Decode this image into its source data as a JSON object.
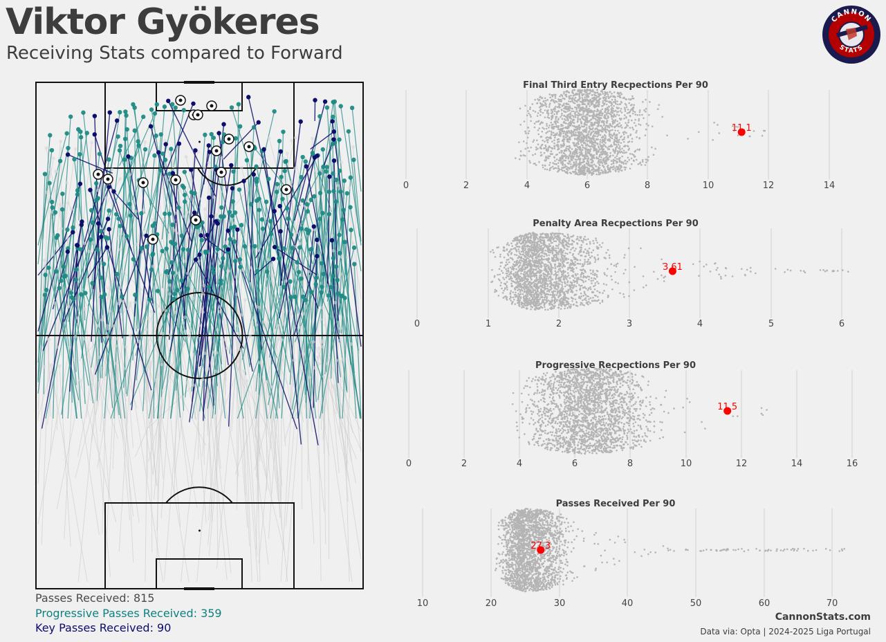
{
  "header": {
    "title": "Viktor Gyökeres",
    "subtitle": "Receiving Stats compared to Forward"
  },
  "logo": {
    "text_top": "CANNON",
    "text_bottom": "STATS",
    "colors": {
      "ring": "#1a1a4e",
      "fill": "#b30000"
    }
  },
  "pitch_legend": {
    "total": "Passes Received: 815",
    "progressive": "Progressive Passes Received: 359",
    "key": "Key Passes Received: 90"
  },
  "colors": {
    "background": "#f0f0f0",
    "all_passes": "#c8c8c8",
    "progressive": "#1f8a84",
    "key": "#0d0d6b",
    "highlight": "#ff0000",
    "swarm": "#b4b4b4"
  },
  "footer": {
    "site": "CannonStats.com",
    "source": "Data via: Opta | 2024-2025 Liga Portugal"
  },
  "chart_data": [
    {
      "type": "scatter",
      "title": "Final Third Entry Recpections Per 90",
      "xlim": [
        0,
        15
      ],
      "ticks": [
        "0",
        "2",
        "4",
        "6",
        "8",
        "10",
        "12",
        "14"
      ],
      "highlight": {
        "value": 11.1,
        "label": "11.1"
      }
    },
    {
      "type": "scatter",
      "title": "Penalty Area Recpections Per 90",
      "xlim": [
        0,
        6.2
      ],
      "ticks": [
        "0",
        "1",
        "2",
        "3",
        "4",
        "5",
        "6"
      ],
      "highlight": {
        "value": 3.61,
        "label": "3.61"
      }
    },
    {
      "type": "scatter",
      "title": "Progressive Recpections Per 90",
      "xlim": [
        0,
        16
      ],
      "ticks": [
        "0",
        "2",
        "4",
        "6",
        "8",
        "10",
        "12",
        "14",
        "16"
      ],
      "highlight": {
        "value": 11.5,
        "label": "11.5"
      }
    },
    {
      "type": "scatter",
      "title": "Passes Received Per 90",
      "xlim": [
        10,
        72
      ],
      "ticks": [
        "10",
        "20",
        "30",
        "40",
        "50",
        "60",
        "70"
      ],
      "highlight": {
        "value": 27.3,
        "label": "27.3"
      }
    }
  ]
}
